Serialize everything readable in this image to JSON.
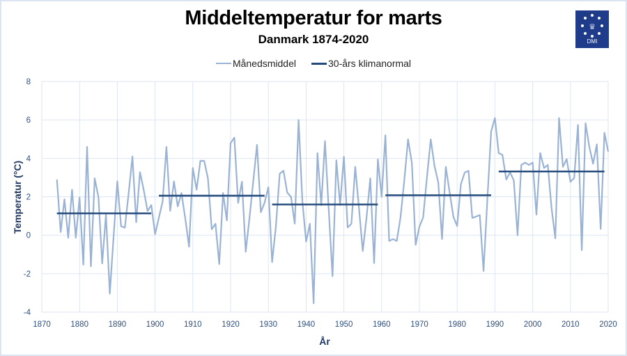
{
  "header": {
    "title": "Middeltemperatur for marts",
    "subtitle": "Danmark 1874-2020",
    "logo_text": "DMI",
    "logo_icon": "dmi-crown-icon"
  },
  "colors": {
    "monthly_line": "#9ab3d5",
    "normal_line": "#244a7c",
    "grid": "#dce6f2",
    "logo_bg": "#1f3c8a",
    "tick_text": "#2f4f7f"
  },
  "chart_data": {
    "type": "line",
    "title": "Middeltemperatur for marts",
    "subtitle": "Danmark 1874-2020",
    "xlabel": "År",
    "ylabel": "Temperatur (°C)",
    "xlim": [
      1870,
      2020
    ],
    "ylim": [
      -4,
      8
    ],
    "x_ticks": [
      1870,
      1880,
      1890,
      1900,
      1910,
      1920,
      1930,
      1940,
      1950,
      1960,
      1970,
      1980,
      1990,
      2000,
      2010,
      2020
    ],
    "y_ticks": [
      -4,
      -2,
      0,
      2,
      4,
      6,
      8
    ],
    "grid": true,
    "legend_position": "top-center",
    "legend": [
      "Månedsmiddel",
      "30-års klimanormal"
    ],
    "series": [
      {
        "name": "Månedsmiddel",
        "x_start": 1874,
        "x_end": 2020,
        "values": [
          2.9,
          0.17,
          1.87,
          -0.13,
          2.37,
          -0.13,
          1.96,
          -1.53,
          4.6,
          -1.62,
          2.96,
          1.99,
          -1.47,
          1.08,
          -3.04,
          -0.1,
          2.8,
          0.47,
          0.39,
          2.2,
          4.1,
          0.68,
          3.28,
          2.36,
          1.26,
          1.57,
          0.06,
          0.9,
          1.75,
          4.6,
          1.27,
          2.8,
          1.5,
          2.2,
          0.85,
          -0.6,
          3.5,
          2.37,
          3.87,
          3.87,
          2.95,
          0.31,
          0.6,
          -1.5,
          2.2,
          0.77,
          4.79,
          5.08,
          1.68,
          2.79,
          -0.86,
          0.9,
          2.8,
          4.7,
          1.2,
          1.7,
          2.5,
          -1.4,
          0.45,
          3.2,
          3.36,
          2.22,
          2.0,
          0.6,
          6.0,
          1.78,
          -0.33,
          0.6,
          -3.54,
          4.27,
          1.56,
          4.9,
          1.3,
          -2.13,
          3.9,
          1.57,
          4.09,
          0.4,
          0.6,
          3.56,
          1.4,
          -0.82,
          0.9,
          2.96,
          -1.45,
          3.95,
          2.0,
          5.2,
          -0.3,
          -0.2,
          -0.3,
          0.93,
          2.84,
          4.99,
          3.76,
          -0.5,
          0.45,
          0.93,
          3.0,
          4.99,
          3.6,
          2.75,
          -0.2,
          3.56,
          2.23,
          0.96,
          0.48,
          2.66,
          3.26,
          3.35,
          0.9,
          0.97,
          1.05,
          -1.86,
          1.9,
          5.4,
          6.1,
          4.28,
          4.18,
          2.9,
          3.27,
          2.86,
          0.0,
          3.66,
          3.78,
          3.66,
          3.78,
          1.07,
          4.28,
          3.5,
          3.66,
          1.4,
          -0.16,
          6.1,
          3.56,
          3.96,
          2.78,
          2.98,
          5.74,
          -0.78,
          5.83,
          4.6,
          3.72,
          4.73,
          0.33,
          5.33,
          4.35
        ]
      },
      {
        "name": "30-års klimanormal",
        "segments": [
          {
            "from": 1874,
            "to": 1899,
            "value": 1.14
          },
          {
            "from": 1901,
            "to": 1929,
            "value": 2.06
          },
          {
            "from": 1931,
            "to": 1959,
            "value": 1.6
          },
          {
            "from": 1961,
            "to": 1989,
            "value": 2.08
          },
          {
            "from": 1991,
            "to": 2019,
            "value": 3.32
          }
        ]
      }
    ]
  }
}
